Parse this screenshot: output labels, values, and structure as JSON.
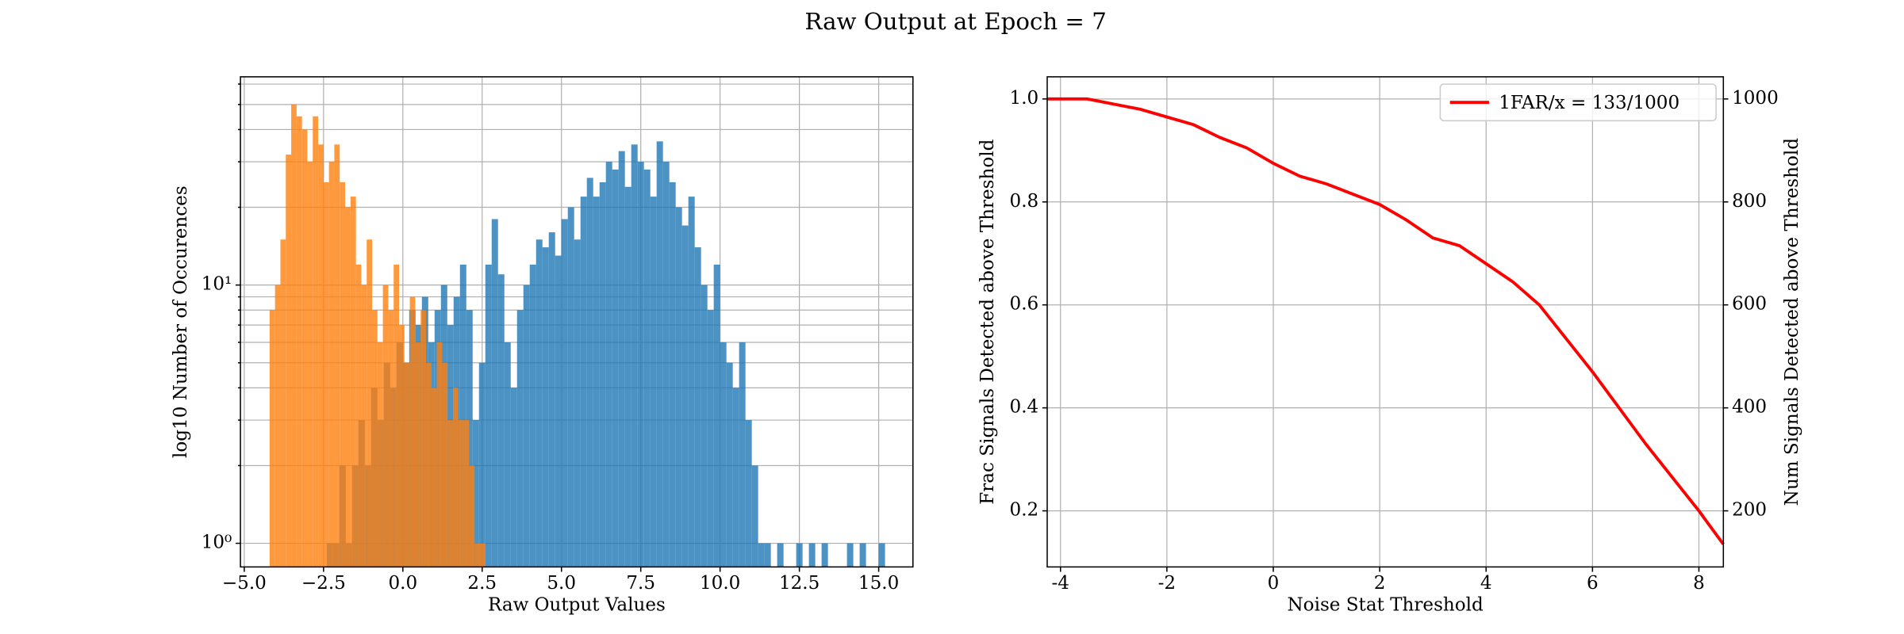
{
  "title": "Raw Output at Epoch = 7",
  "chart_data": [
    {
      "type": "histogram",
      "xlabel": "Raw Output Values",
      "ylabel": "log10 Number of Occurences",
      "xlim": [
        -5.12,
        16.08
      ],
      "xticks": [
        {
          "value": -5,
          "label": "−5.0"
        },
        {
          "value": -2.5,
          "label": "−2.5"
        },
        {
          "value": 0,
          "label": "0.0"
        },
        {
          "value": 2.5,
          "label": "2.5"
        },
        {
          "value": 5,
          "label": "5.0"
        },
        {
          "value": 7.5,
          "label": "7.5"
        },
        {
          "value": 10,
          "label": "10.0"
        },
        {
          "value": 12.5,
          "label": "12.5"
        },
        {
          "value": 15,
          "label": "15.0"
        }
      ],
      "ylim": [
        0.81,
        64
      ],
      "log_y": true,
      "yticks": [
        {
          "value": 1,
          "label": "10⁰"
        },
        {
          "value": 10,
          "label": "10¹"
        }
      ],
      "yminorticks": [
        2,
        3,
        4,
        5,
        6,
        7,
        8,
        9,
        20,
        30,
        40,
        50,
        60
      ],
      "grid": true,
      "series": [
        {
          "color": "#1f77b4",
          "bins_start": -2.4,
          "bins": [
            -2.4,
            -2.2,
            -2.0,
            -1.8,
            -1.6,
            -1.4,
            -1.2,
            -1.0,
            -0.8,
            -0.6,
            -0.4,
            -0.2,
            0.0,
            0.2,
            0.4,
            0.6,
            0.8,
            1.0,
            1.2,
            1.4,
            1.6,
            1.8,
            2.0,
            2.2,
            2.4,
            2.6,
            2.8,
            3.0,
            3.2,
            3.4,
            3.6,
            3.8,
            4.0,
            4.2,
            4.4,
            4.6,
            4.8,
            5.0,
            5.2,
            5.4,
            5.6,
            5.8,
            6.0,
            6.2,
            6.4,
            6.6,
            6.8,
            7.0,
            7.2,
            7.4,
            7.6,
            7.8,
            8.0,
            8.2,
            8.4,
            8.6,
            8.8,
            9.0,
            9.2,
            9.4,
            9.6,
            9.8,
            10.0,
            10.2,
            10.4,
            10.6,
            10.8,
            11.0,
            11.2,
            11.4,
            11.6,
            11.8,
            12.0,
            12.2,
            12.4,
            12.6,
            12.8,
            13.0,
            13.2,
            13.4,
            13.6,
            13.8,
            14.0,
            14.2,
            14.4,
            14.6,
            14.8,
            15.0,
            15.2
          ],
          "values": [
            1,
            1,
            2,
            1,
            2,
            3,
            2,
            4,
            3,
            5,
            4,
            6,
            5,
            8,
            7,
            9,
            6,
            8,
            10,
            7,
            9,
            12,
            8,
            3,
            5,
            12,
            18,
            11,
            6,
            4,
            8,
            10,
            12,
            15,
            14,
            16,
            13,
            18,
            20,
            15,
            22,
            26,
            22,
            25,
            30,
            28,
            33,
            24,
            35,
            30,
            28,
            22,
            36,
            30,
            25,
            20,
            17,
            22,
            14,
            10,
            8,
            12,
            6,
            5,
            4,
            6,
            3,
            2,
            1,
            1,
            0,
            1,
            0,
            0,
            1,
            0,
            1,
            0,
            1,
            0,
            0,
            0,
            1,
            0,
            1,
            0,
            0,
            1
          ]
        },
        {
          "color": "#ff7f0e",
          "bins": [
            -4.2,
            -4.03,
            -3.86,
            -3.69,
            -3.52,
            -3.35,
            -3.18,
            -3.01,
            -2.84,
            -2.67,
            -2.5,
            -2.33,
            -2.16,
            -1.99,
            -1.82,
            -1.65,
            -1.48,
            -1.31,
            -1.14,
            -0.97,
            -0.8,
            -0.63,
            -0.46,
            -0.29,
            -0.12,
            0.05,
            0.22,
            0.39,
            0.56,
            0.73,
            0.9,
            1.07,
            1.24,
            1.41,
            1.58,
            1.75,
            1.92,
            2.09,
            2.26,
            2.43,
            2.6
          ],
          "values": [
            8,
            10,
            15,
            32,
            50,
            45,
            40,
            30,
            45,
            35,
            25,
            30,
            35,
            25,
            20,
            22,
            12,
            10,
            15,
            8,
            6,
            10,
            8,
            12,
            7,
            5,
            9,
            6,
            8,
            5,
            4,
            6,
            5,
            3,
            4,
            3,
            3,
            2,
            1,
            1
          ]
        }
      ]
    },
    {
      "type": "line",
      "xlabel": "Noise Stat Threshold",
      "ylabel": "Frac Signals Detected above Threshold",
      "y2label": "Num Signals Detected above Threshold",
      "xlim": [
        -4.25,
        8.46
      ],
      "xticks": [
        -4,
        -2,
        0,
        2,
        4,
        6,
        8
      ],
      "ylim": [
        0.091,
        1.043
      ],
      "yticks": [
        0.2,
        0.4,
        0.6,
        0.8,
        {
          "value": 1,
          "label": "1.0"
        }
      ],
      "y2lim": [
        91,
        1043
      ],
      "y2ticks": [
        200,
        400,
        600,
        800,
        1000
      ],
      "grid": true,
      "legend": "upper right",
      "series": [
        {
          "name": "1FAR/x = 133/1000",
          "color": "#ff0000",
          "x": [
            -4.25,
            -3.5,
            -3,
            -2.5,
            -2,
            -1.5,
            -1,
            -0.5,
            0,
            0.5,
            1,
            1.5,
            2,
            2.5,
            3,
            3.5,
            4,
            4.5,
            5,
            6,
            7,
            8,
            8.46
          ],
          "values": [
            1.0,
            1.0,
            0.99,
            0.98,
            0.965,
            0.95,
            0.925,
            0.905,
            0.875,
            0.85,
            0.835,
            0.815,
            0.795,
            0.765,
            0.73,
            0.715,
            0.68,
            0.645,
            0.6,
            0.47,
            0.33,
            0.2,
            0.135
          ]
        }
      ]
    }
  ]
}
